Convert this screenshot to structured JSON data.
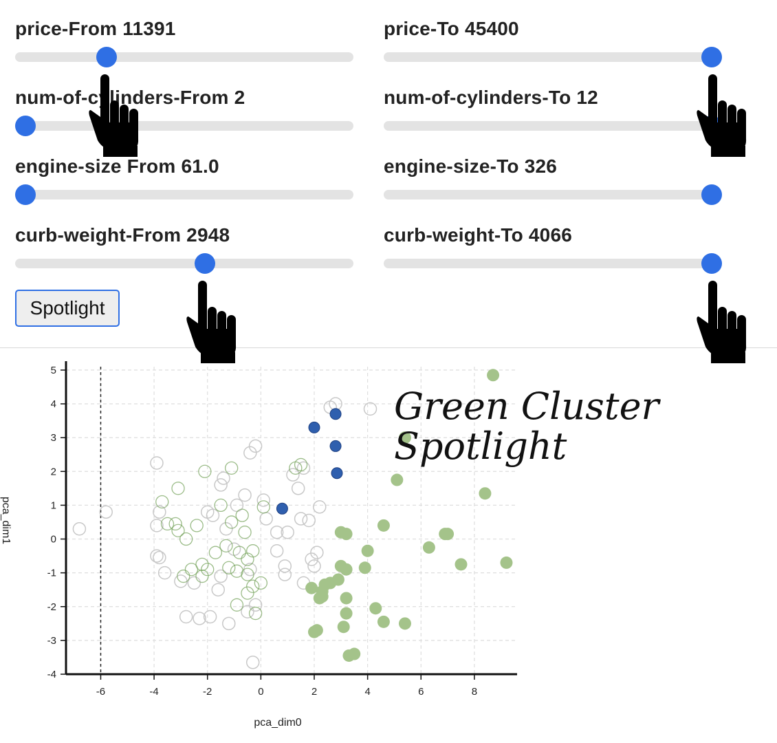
{
  "controls": [
    {
      "id": "price-from",
      "label": "price-From 11391",
      "value": 0.27
    },
    {
      "id": "price-to",
      "label": "price-To 45400",
      "value": 0.97
    },
    {
      "id": "cyl-from",
      "label": "num-of-cylinders-From 2",
      "value": 0.03
    },
    {
      "id": "cyl-to",
      "label": "num-of-cylinders-To 12",
      "value": 0.97
    },
    {
      "id": "engine-from",
      "label": "engine-size From 61.0",
      "value": 0.03
    },
    {
      "id": "engine-to",
      "label": "engine-size-To 326",
      "value": 0.97
    },
    {
      "id": "curb-from",
      "label": "curb-weight-From 2948",
      "value": 0.56
    },
    {
      "id": "curb-to",
      "label": "curb-weight-To 4066",
      "value": 0.97
    }
  ],
  "spotlight_label": "Spotlight",
  "annotation": {
    "line1": "Green Cluster",
    "line2": "Spotlight"
  },
  "icons": {
    "cursor": "pointing-hand-icon"
  },
  "colors": {
    "accent": "#2f6fe4",
    "spotlight": "#2f5fae",
    "cluster_fill": "#a4c38a",
    "cluster_stroke": "#7aa560",
    "outline": "#c8c8c8"
  },
  "chart_data": {
    "type": "scatter",
    "xlabel": "pca_dim0",
    "ylabel": "pca_dim1",
    "xlim": [
      -7.3,
      9.6
    ],
    "ylim": [
      -4,
      5.1
    ],
    "xticks": [
      -6,
      -4,
      -2,
      0,
      2,
      4,
      6,
      8
    ],
    "yticks": [
      -4,
      -3,
      -2,
      -1,
      0,
      1,
      2,
      3,
      4,
      5
    ],
    "grid": true,
    "reference_line_x": -6,
    "series": [
      {
        "style": "spotlight",
        "points": [
          [
            2.0,
            3.3
          ],
          [
            2.8,
            3.7
          ],
          [
            2.8,
            2.75
          ],
          [
            2.85,
            1.95
          ],
          [
            0.8,
            0.9
          ]
        ]
      },
      {
        "style": "cluster",
        "points": [
          [
            8.7,
            4.85
          ],
          [
            5.4,
            3.0
          ],
          [
            5.1,
            1.75
          ],
          [
            8.4,
            1.35
          ],
          [
            4.6,
            0.4
          ],
          [
            3.0,
            0.2
          ],
          [
            3.2,
            0.15
          ],
          [
            6.9,
            0.15
          ],
          [
            7.0,
            0.15
          ],
          [
            6.3,
            -0.25
          ],
          [
            4.0,
            -0.35
          ],
          [
            7.5,
            -0.75
          ],
          [
            9.2,
            -0.7
          ],
          [
            3.0,
            -0.8
          ],
          [
            3.2,
            -0.9
          ],
          [
            3.9,
            -0.85
          ],
          [
            2.9,
            -1.2
          ],
          [
            2.6,
            -1.3
          ],
          [
            1.9,
            -1.45
          ],
          [
            2.3,
            -1.55
          ],
          [
            2.3,
            -1.7
          ],
          [
            3.2,
            -1.75
          ],
          [
            2.2,
            -1.75
          ],
          [
            2.4,
            -1.35
          ],
          [
            4.3,
            -2.05
          ],
          [
            3.2,
            -2.2
          ],
          [
            4.6,
            -2.45
          ],
          [
            5.4,
            -2.5
          ],
          [
            3.1,
            -2.6
          ],
          [
            2.0,
            -2.75
          ],
          [
            2.1,
            -2.7
          ],
          [
            3.3,
            -3.45
          ],
          [
            3.5,
            -3.4
          ]
        ]
      },
      {
        "style": "outline-green",
        "points": [
          [
            -3.1,
            1.5
          ],
          [
            -2.1,
            2.0
          ],
          [
            1.3,
            2.1
          ],
          [
            -3.7,
            1.1
          ],
          [
            -3.2,
            0.45
          ],
          [
            -3.1,
            0.25
          ],
          [
            -2.8,
            0.0
          ],
          [
            -2.4,
            0.4
          ],
          [
            -1.5,
            1.0
          ],
          [
            -1.1,
            0.5
          ],
          [
            -0.7,
            0.7
          ],
          [
            -0.6,
            0.2
          ],
          [
            -1.3,
            -0.2
          ],
          [
            -0.8,
            -0.4
          ],
          [
            -0.5,
            -0.6
          ],
          [
            -1.2,
            -0.85
          ],
          [
            -2.2,
            -0.75
          ],
          [
            -2.6,
            -0.9
          ],
          [
            -2.9,
            -1.1
          ],
          [
            -2.2,
            -1.1
          ],
          [
            -0.3,
            -1.4
          ],
          [
            -0.5,
            -1.6
          ],
          [
            -0.9,
            -1.95
          ],
          [
            -0.2,
            -2.2
          ],
          [
            0.0,
            -1.3
          ],
          [
            -1.7,
            -0.4
          ],
          [
            0.1,
            0.95
          ],
          [
            -1.1,
            2.1
          ],
          [
            1.5,
            2.2
          ],
          [
            -3.5,
            0.45
          ],
          [
            -0.5,
            -1.05
          ],
          [
            -2.0,
            -0.9
          ],
          [
            -0.3,
            -0.35
          ],
          [
            -0.9,
            -0.95
          ]
        ]
      },
      {
        "style": "outline-grey",
        "points": [
          [
            -6.8,
            0.3
          ],
          [
            -5.8,
            0.8
          ],
          [
            -3.9,
            2.25
          ],
          [
            -3.8,
            0.8
          ],
          [
            -3.9,
            0.4
          ],
          [
            -3.9,
            -0.5
          ],
          [
            -3.6,
            -1.0
          ],
          [
            -3.8,
            -0.55
          ],
          [
            -3.0,
            -1.25
          ],
          [
            -2.5,
            -1.3
          ],
          [
            -2.3,
            -2.35
          ],
          [
            -1.9,
            -2.3
          ],
          [
            -1.2,
            -2.5
          ],
          [
            -0.5,
            -2.15
          ],
          [
            -0.2,
            -1.95
          ],
          [
            -0.3,
            -3.65
          ],
          [
            -1.0,
            -0.3
          ],
          [
            -1.6,
            -1.5
          ],
          [
            -1.5,
            -1.1
          ],
          [
            -2.0,
            0.8
          ],
          [
            -1.8,
            0.7
          ],
          [
            -1.5,
            1.6
          ],
          [
            -1.4,
            1.8
          ],
          [
            -0.9,
            1.0
          ],
          [
            -0.6,
            1.3
          ],
          [
            -0.4,
            2.55
          ],
          [
            -0.2,
            2.75
          ],
          [
            0.1,
            1.15
          ],
          [
            0.2,
            0.6
          ],
          [
            0.6,
            0.2
          ],
          [
            0.6,
            -0.35
          ],
          [
            0.9,
            -0.8
          ],
          [
            1.0,
            0.2
          ],
          [
            1.4,
            1.5
          ],
          [
            1.2,
            1.9
          ],
          [
            1.6,
            2.1
          ],
          [
            1.5,
            0.6
          ],
          [
            1.8,
            0.55
          ],
          [
            2.2,
            0.95
          ],
          [
            2.1,
            -0.4
          ],
          [
            1.9,
            -0.6
          ],
          [
            1.6,
            -1.3
          ],
          [
            2.0,
            -0.8
          ],
          [
            2.6,
            3.9
          ],
          [
            2.8,
            4.0
          ],
          [
            4.1,
            3.85
          ],
          [
            -0.4,
            -0.9
          ],
          [
            -2.8,
            -2.3
          ],
          [
            -1.3,
            0.3
          ],
          [
            0.9,
            -1.05
          ]
        ]
      }
    ]
  }
}
